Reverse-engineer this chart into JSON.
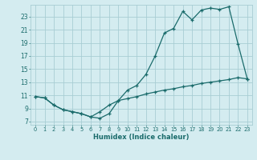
{
  "xlabel": "Humidex (Indice chaleur)",
  "bg_color": "#d4ecf0",
  "grid_color": "#a8cdd4",
  "line_color": "#1a6b6b",
  "x_ticks": [
    0,
    1,
    2,
    3,
    4,
    5,
    6,
    7,
    8,
    9,
    10,
    11,
    12,
    13,
    14,
    15,
    16,
    17,
    18,
    19,
    20,
    21,
    22,
    23
  ],
  "y_ticks": [
    7,
    9,
    11,
    13,
    15,
    17,
    19,
    21,
    23
  ],
  "xlim": [
    -0.5,
    23.5
  ],
  "ylim": [
    6.5,
    24.8
  ],
  "series1_x": [
    0,
    1,
    2,
    3,
    4,
    5,
    6,
    7,
    8,
    9,
    10,
    11,
    12,
    13,
    14,
    15,
    16,
    17,
    18,
    19,
    20,
    21,
    22,
    23
  ],
  "series1_y": [
    10.8,
    10.6,
    9.5,
    8.8,
    8.5,
    8.2,
    7.7,
    7.5,
    8.2,
    10.2,
    11.8,
    12.5,
    14.2,
    17.0,
    20.5,
    21.2,
    23.8,
    22.5,
    24.0,
    24.3,
    24.1,
    24.5,
    18.8,
    13.5
  ],
  "series2_x": [
    0,
    1,
    2,
    3,
    4,
    5,
    6,
    7,
    8,
    9,
    10,
    11,
    12,
    13,
    14,
    15,
    16,
    17,
    18,
    19,
    20,
    21,
    22,
    23
  ],
  "series2_y": [
    10.8,
    10.6,
    9.5,
    8.8,
    8.5,
    8.2,
    7.7,
    8.5,
    9.5,
    10.2,
    10.5,
    10.8,
    11.2,
    11.5,
    11.8,
    12.0,
    12.3,
    12.5,
    12.8,
    13.0,
    13.2,
    13.4,
    13.7,
    13.5
  ]
}
